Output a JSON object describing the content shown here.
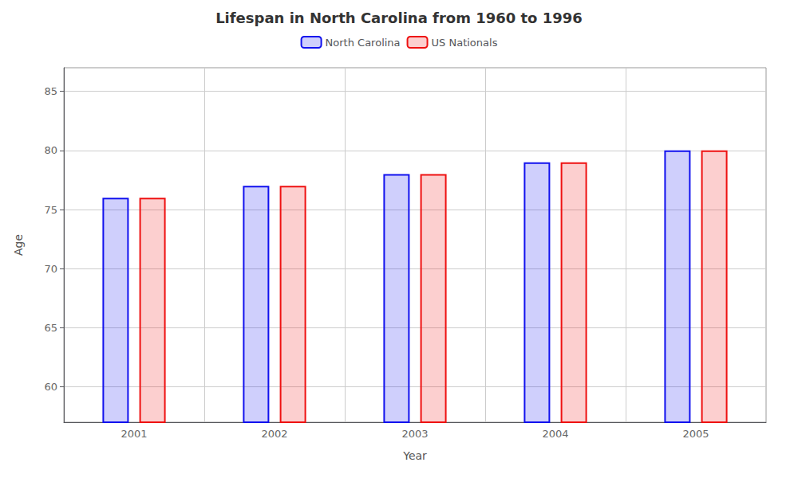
{
  "chart_data": {
    "type": "bar",
    "title": "Lifespan in North Carolina from 1960 to 1996",
    "xlabel": "Year",
    "ylabel": "Age",
    "categories": [
      "2001",
      "2002",
      "2003",
      "2004",
      "2005"
    ],
    "series": [
      {
        "name": "North Carolina",
        "color": "#1111ee",
        "values": [
          76,
          77,
          78,
          79,
          80
        ]
      },
      {
        "name": "US Nationals",
        "color": "#ee1111",
        "values": [
          76,
          77,
          78,
          79,
          80
        ]
      }
    ],
    "ylim": [
      57,
      87
    ],
    "yticks": [
      60,
      65,
      70,
      75,
      80,
      85
    ],
    "grid": true,
    "legend": "top"
  }
}
